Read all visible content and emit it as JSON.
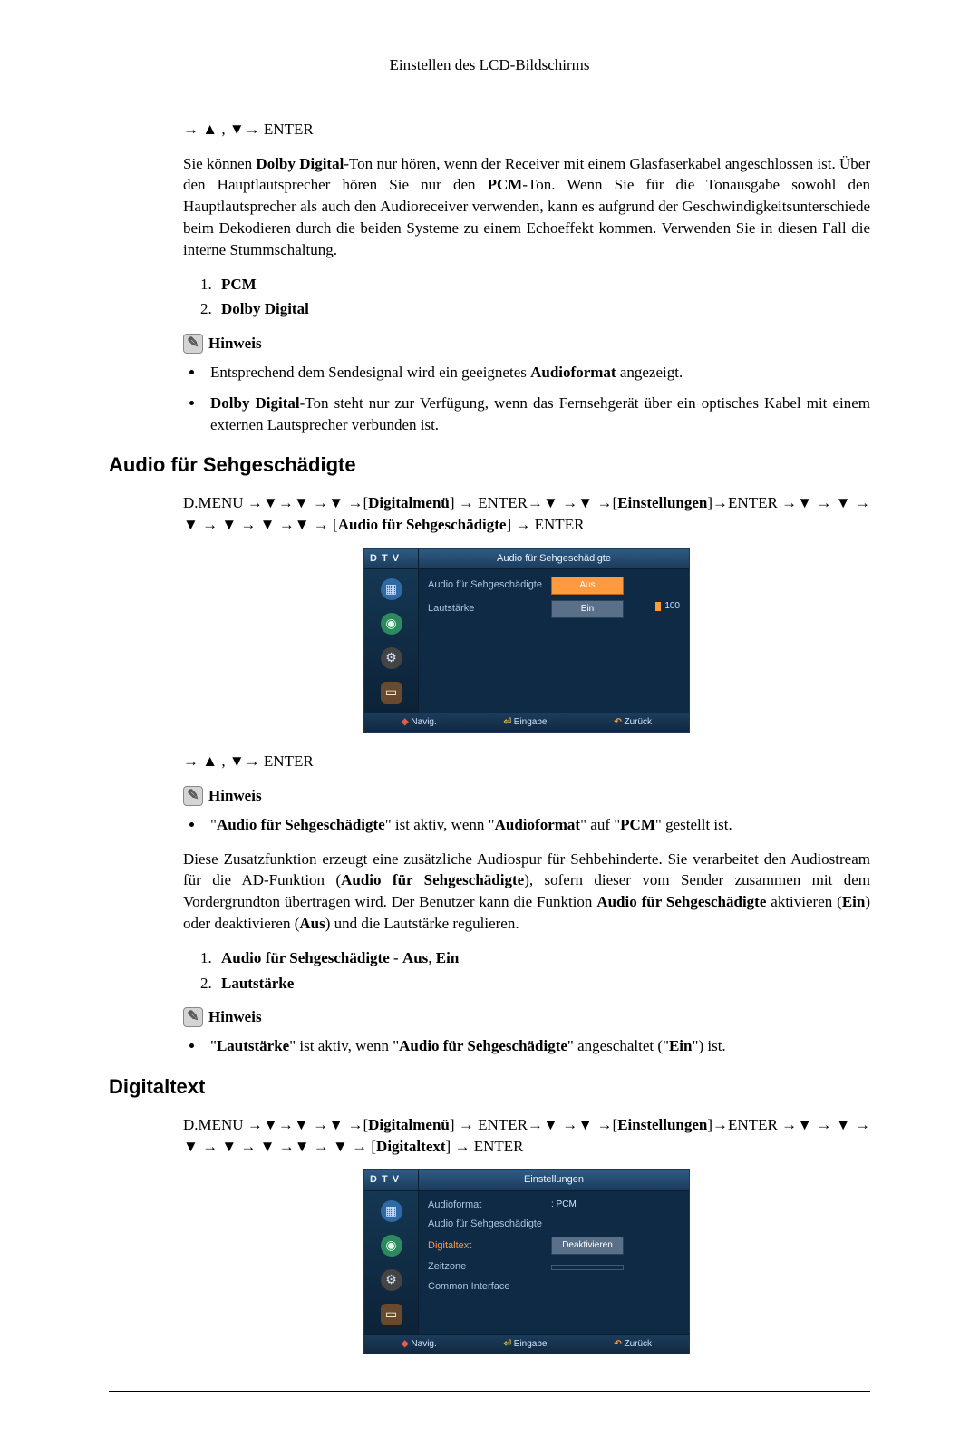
{
  "header": {
    "title": "Einstellen des LCD-Bildschirms"
  },
  "s1": {
    "nav": "→ ▲ , ▼→ ENTER",
    "para": "Sie können <b>Dolby Digital</b>-Ton nur hören, wenn der Receiver mit einem Glasfaserkabel angeschlossen ist. Über den Hauptlautsprecher hören Sie nur den <b>PCM</b>-Ton. Wenn Sie für die Tonausgabe sowohl den Hauptlautsprecher als auch den Audioreceiver verwenden, kann es aufgrund der Geschwindigkeitsunterschiede beim Dekodieren durch die beiden Systeme zu einem Echoeffekt kommen. Verwenden Sie in diesen Fall die interne Stummschaltung.",
    "list": [
      "PCM",
      "Dolby Digital"
    ],
    "hinweis": "Hinweis",
    "bullets": [
      "Entsprechend dem Sendesignal wird ein geeignetes <b>Audioformat</b> angezeigt.",
      "<b>Dolby Digital</b>-Ton steht nur zur Verfügung, wenn das Fernsehgerät über ein optisches Kabel mit einem externen Lautsprecher verbunden ist."
    ]
  },
  "s2": {
    "heading": "Audio für Sehgeschädigte",
    "menuPath": "D.MENU →▼→▼ →▼ →[<b>Digitalmenü</b>] → ENTER→▼ →▼ →[<b>Einstellungen</b>]→ENTER →▼ → ▼ → ▼ → ▼ → ▼ →▼ → [<b>Audio für Sehgeschädigte</b>] → ENTER",
    "nav2": "→ ▲ , ▼→ ENTER",
    "hinweis": "Hinweis",
    "bullet1": "\"<b>Audio für Sehgeschädigte</b>\" ist aktiv, wenn \"<b>Audioformat</b>\" auf \"<b>PCM</b>\" gestellt ist.",
    "para2": "Diese Zusatzfunktion erzeugt eine zusätzliche Audiospur für Sehbehinderte. Sie verarbeitet den Audiostream für die AD-Funktion (<b>Audio für Sehgeschädigte</b>), sofern dieser vom Sender zusammen mit dem Vordergrundton übertragen wird. Der Benutzer kann die Funktion <b>Audio für Sehgeschädigte</b> aktivieren (<b>Ein</b>) oder deaktivieren (<b>Aus</b>) und die Lautstärke regulieren.",
    "list2": [
      "<b>Audio für Sehgeschädigte</b> - <b>Aus</b>, <b>Ein</b>",
      "<b>Lautstärke</b>"
    ],
    "hinweis2": "Hinweis",
    "bullet2": "\"<b>Lautstärke</b>\" ist aktiv, wenn \"<b>Audio für Sehgeschädigte</b>\" angeschaltet (\"<b>Ein</b>\") ist."
  },
  "s3": {
    "heading": "Digitaltext",
    "menuPath": "D.MENU →▼→▼ →▼ →[<b>Digitalmenü</b>] → ENTER→▼ →▼ →[<b>Einstellungen</b>]→ENTER →▼ → ▼ → ▼ → ▼ → ▼ →▼ → ▼ → [<b>Digitaltext</b>] → ENTER"
  },
  "osd1": {
    "dtv": "D T V",
    "title": "Audio für Sehgeschädigte",
    "rows": [
      {
        "label": "Audio für Sehgeschädigte",
        "box": "Aus",
        "hlBox": true
      },
      {
        "label": "Lautstärke",
        "box": "Ein",
        "hlBox": false
      }
    ],
    "extra": "100",
    "foot": {
      "nav": "Navig.",
      "enter": "Eingabe",
      "back": "Zurück"
    },
    "colors": {
      "bg": "#0e2a44",
      "highlight": "#ff9a3e",
      "text": "#cfe3ff"
    }
  },
  "osd2": {
    "dtv": "D T V",
    "title": "Einstellungen",
    "rows": [
      {
        "label": "Audioformat",
        "val": ": PCM"
      },
      {
        "label": "Audio für Sehgeschädigte",
        "val": ""
      },
      {
        "label": "Digitaltext",
        "box": "Deaktivieren",
        "hlLabel": true
      },
      {
        "label": "Zeitzone",
        "box": "",
        "plain": true
      },
      {
        "label": "Common Interface",
        "val": ""
      }
    ],
    "foot": {
      "nav": "Navig.",
      "enter": "Eingabe",
      "back": "Zurück"
    },
    "colors": {
      "bg": "#0e2a44",
      "highlight": "#ff9a3e",
      "text": "#cfe3ff"
    }
  }
}
